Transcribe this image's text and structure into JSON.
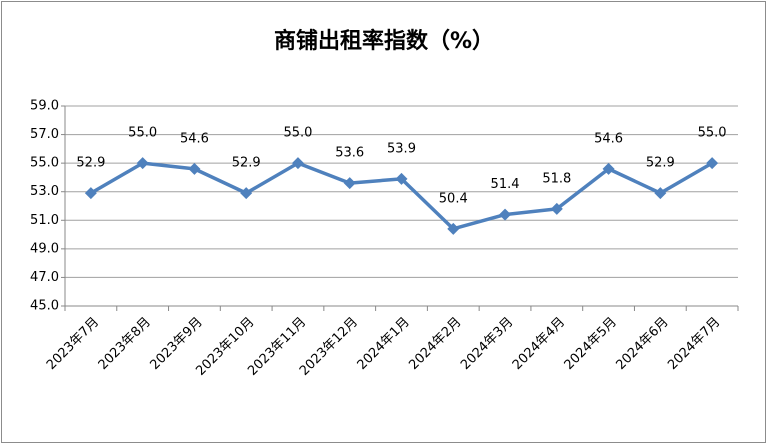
{
  "chart_data": {
    "type": "line",
    "title": "商铺出租率指数（%）",
    "categories": [
      "2023年7月",
      "2023年8月",
      "2023年9月",
      "2023年10月",
      "2023年11月",
      "2023年12月",
      "2024年1月",
      "2024年2月",
      "2024年3月",
      "2024年4月",
      "2024年5月",
      "2024年6月",
      "2024年7月"
    ],
    "values": [
      52.9,
      55.0,
      54.6,
      52.9,
      55.0,
      53.6,
      53.9,
      50.4,
      51.4,
      51.8,
      54.6,
      52.9,
      55.0
    ],
    "value_labels": [
      "52.9",
      "55.0",
      "54.6",
      "52.9",
      "55.0",
      "53.6",
      "53.9",
      "50.4",
      "51.4",
      "51.8",
      "54.6",
      "52.9",
      "55.0"
    ],
    "color": "#4f81bd",
    "ylim": [
      45,
      59
    ],
    "yticks": [
      {
        "value": 45,
        "label": "45.0"
      },
      {
        "value": 47,
        "label": "47.0"
      },
      {
        "value": 49,
        "label": "49.0"
      },
      {
        "value": 51,
        "label": "51.0"
      },
      {
        "value": 53,
        "label": "53.0"
      },
      {
        "value": 55,
        "label": "55.0"
      },
      {
        "value": 57,
        "label": "57.0"
      },
      {
        "value": 59,
        "label": "59.0"
      }
    ],
    "grid": true
  }
}
